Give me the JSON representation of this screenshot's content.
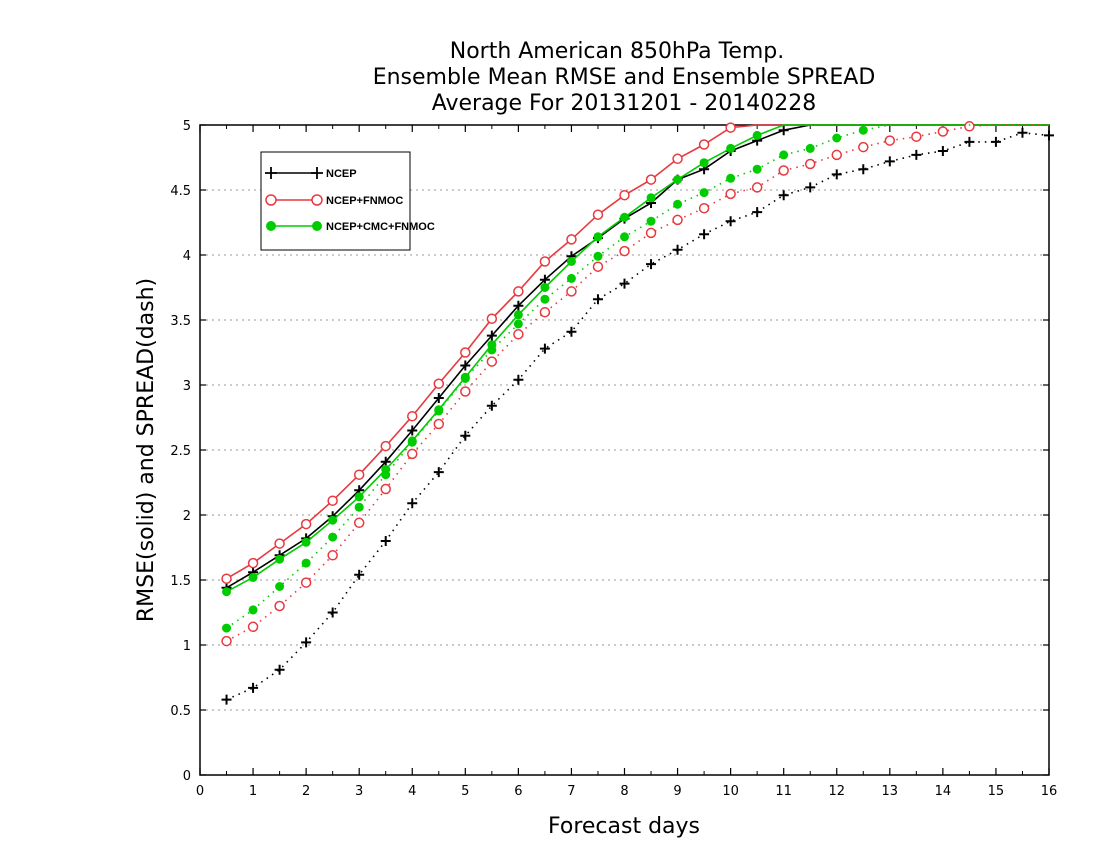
{
  "chart_data": {
    "type": "line",
    "title": [
      "North American 850hPa Temp.",
      "Ensemble Mean RMSE and Ensemble SPREAD",
      "Average For 20131201 - 20140228"
    ],
    "xlabel": "Forecast days",
    "ylabel": "RMSE(solid) and SPREAD(dash)",
    "xlim": [
      0,
      16
    ],
    "ylim": [
      0,
      5
    ],
    "xticks": [
      "0",
      "1",
      "2",
      "3",
      "4",
      "5",
      "6",
      "7",
      "8",
      "9",
      "10",
      "11",
      "12",
      "13",
      "14",
      "15",
      "16"
    ],
    "yticks": [
      "0",
      "0.5",
      "1",
      "1.5",
      "2",
      "2.5",
      "3",
      "3.5",
      "4",
      "4.5",
      "5"
    ],
    "grid": "horizontal dotted",
    "legend_position": "top-left",
    "legend": [
      "NCEP",
      "NCEP+FNMOC",
      "NCEP+CMC+FNMOC"
    ],
    "x": [
      0.5,
      1,
      1.5,
      2,
      2.5,
      3,
      3.5,
      4,
      4.5,
      5,
      5.5,
      6,
      6.5,
      7,
      7.5,
      8,
      8.5,
      9,
      9.5,
      10,
      10.5,
      11,
      11.5,
      12,
      12.5,
      13,
      13.5,
      14,
      14.5,
      15,
      15.5,
      16
    ],
    "series": [
      {
        "name": "NCEP",
        "kind": "RMSE",
        "style": "solid",
        "marker": "plus",
        "color": "#000000",
        "values": [
          1.44,
          1.56,
          1.69,
          1.82,
          1.99,
          2.19,
          2.41,
          2.65,
          2.9,
          3.15,
          3.38,
          3.61,
          3.81,
          3.99,
          4.13,
          4.28,
          4.4,
          4.58,
          4.66,
          4.8,
          4.88,
          4.96,
          5.0,
          5.0,
          5.0,
          5.0,
          5.0,
          5.0,
          5.0,
          5.0,
          5.0,
          5.0
        ]
      },
      {
        "name": "NCEP+FNMOC",
        "kind": "RMSE",
        "style": "solid",
        "marker": "circle",
        "color": "#e8393f",
        "values": [
          1.51,
          1.63,
          1.78,
          1.93,
          2.11,
          2.31,
          2.53,
          2.76,
          3.01,
          3.25,
          3.51,
          3.72,
          3.95,
          4.12,
          4.31,
          4.46,
          4.58,
          4.74,
          4.85,
          4.98,
          5.0,
          5.0,
          5.0,
          5.0,
          5.0,
          5.0,
          5.0,
          5.0,
          5.0,
          5.0,
          5.0,
          5.0
        ]
      },
      {
        "name": "NCEP+CMC+FNMOC",
        "kind": "RMSE",
        "style": "solid",
        "marker": "dot",
        "color": "#00cc00",
        "values": [
          1.41,
          1.52,
          1.66,
          1.79,
          1.96,
          2.14,
          2.35,
          2.57,
          2.81,
          3.06,
          3.31,
          3.54,
          3.75,
          3.95,
          4.14,
          4.29,
          4.44,
          4.58,
          4.71,
          4.82,
          4.92,
          5.0,
          5.0,
          5.0,
          5.0,
          5.0,
          5.0,
          5.0,
          5.0,
          5.0,
          5.0,
          5.0
        ]
      },
      {
        "name": "NCEP",
        "kind": "SPREAD",
        "style": "dash",
        "marker": "plus",
        "color": "#000000",
        "values": [
          0.58,
          0.67,
          0.81,
          1.02,
          1.25,
          1.54,
          1.8,
          2.09,
          2.33,
          2.61,
          2.84,
          3.04,
          3.28,
          3.41,
          3.66,
          3.78,
          3.93,
          4.04,
          4.16,
          4.26,
          4.33,
          4.46,
          4.52,
          4.62,
          4.66,
          4.72,
          4.77,
          4.8,
          4.87,
          4.87,
          4.94,
          4.92
        ]
      },
      {
        "name": "NCEP+FNMOC",
        "kind": "SPREAD",
        "style": "dash",
        "marker": "circle",
        "color": "#e8393f",
        "values": [
          1.03,
          1.14,
          1.3,
          1.48,
          1.69,
          1.94,
          2.2,
          2.47,
          2.7,
          2.95,
          3.18,
          3.39,
          3.56,
          3.72,
          3.91,
          4.03,
          4.17,
          4.27,
          4.36,
          4.47,
          4.52,
          4.65,
          4.7,
          4.77,
          4.83,
          4.88,
          4.91,
          4.95,
          4.99,
          5.0,
          5.0,
          5.0
        ]
      },
      {
        "name": "NCEP+CMC+FNMOC",
        "kind": "SPREAD",
        "style": "dash",
        "marker": "dot",
        "color": "#00cc00",
        "values": [
          1.13,
          1.27,
          1.45,
          1.63,
          1.83,
          2.06,
          2.31,
          2.56,
          2.8,
          3.05,
          3.27,
          3.47,
          3.66,
          3.82,
          3.99,
          4.14,
          4.26,
          4.39,
          4.48,
          4.59,
          4.66,
          4.77,
          4.82,
          4.9,
          4.96,
          5.0,
          5.0,
          5.0,
          5.0,
          5.0,
          5.0,
          5.0
        ]
      }
    ]
  }
}
